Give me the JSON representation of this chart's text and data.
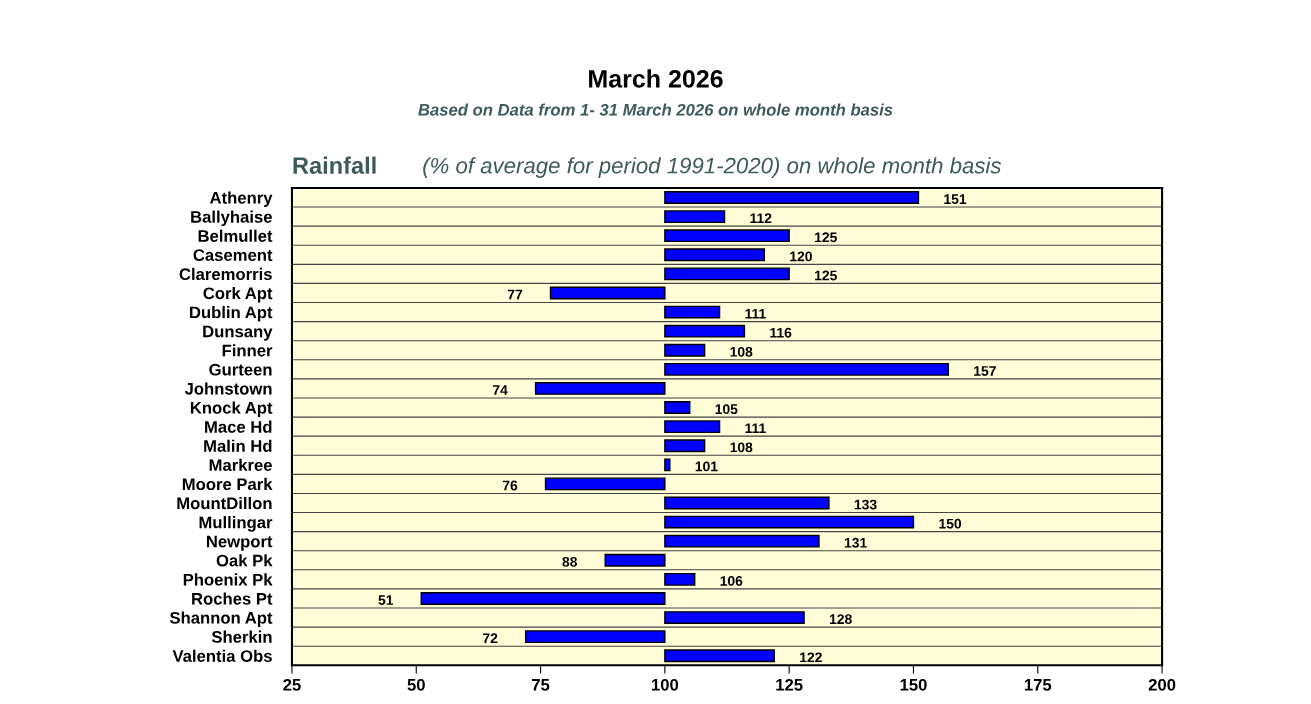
{
  "chart_data": {
    "type": "bar",
    "orientation": "horizontal",
    "title": "March 2026",
    "subtitle": "Based on Data from 1- 31 March 2026 on whole month basis",
    "annotations": [
      "Rainfall",
      "(% of average for period 1991-2020) on whole month basis"
    ],
    "categories": [
      "Athenry",
      "Ballyhaise",
      "Belmullet",
      "Casement",
      "Claremorris",
      "Cork Apt",
      "Dublin Apt",
      "Dunsany",
      "Finner",
      "Gurteen",
      "Johnstown",
      "Knock Apt",
      "Mace Hd",
      "Malin Hd",
      "Markree",
      "Moore Park",
      "MountDillon",
      "Mullingar",
      "Newport",
      "Oak Pk",
      "Phoenix Pk",
      "Roches Pt",
      "Shannon Apt",
      "Sherkin",
      "Valentia Obs"
    ],
    "base": [
      100,
      100,
      100,
      100,
      100,
      100,
      100,
      100,
      100,
      100,
      100,
      100,
      100,
      100,
      100,
      100,
      100,
      100,
      100,
      100,
      100,
      100,
      100,
      100,
      100
    ],
    "values": [
      51,
      12,
      25,
      20,
      25,
      -23,
      11,
      16,
      8,
      57,
      -26,
      5,
      11,
      8,
      1,
      -24,
      33,
      50,
      31,
      -12,
      6,
      -49,
      28,
      -28,
      22
    ],
    "value_labels": [
      "151",
      "112",
      "125",
      "120",
      "125",
      "77",
      "111",
      "116",
      "108",
      "157",
      "74",
      "105",
      "111",
      "108",
      "101",
      "76",
      "133",
      "150",
      "131",
      "88",
      "106",
      "51",
      "128",
      "72",
      "122"
    ],
    "color": "#0000ff",
    "xlim": [
      25,
      200
    ],
    "xticks": [
      25,
      50,
      75,
      100,
      125,
      150,
      175,
      200
    ],
    "grid": "y",
    "legend": false
  }
}
